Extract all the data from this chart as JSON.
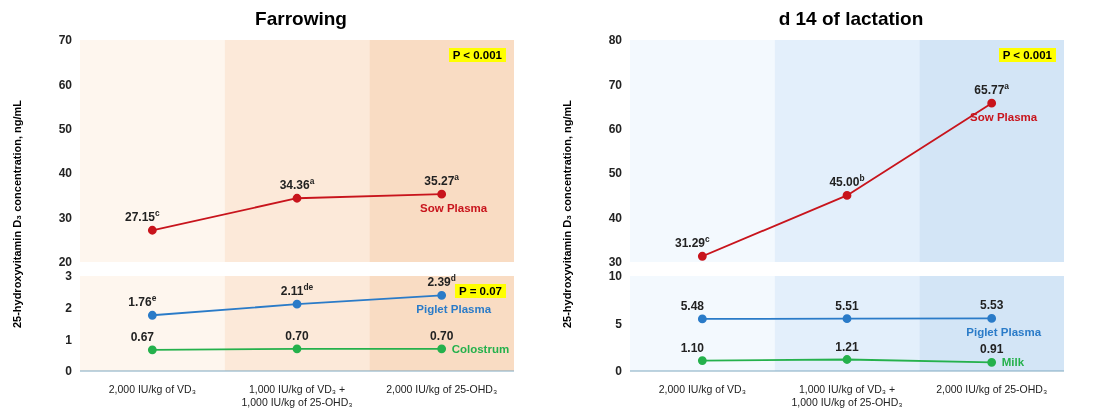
{
  "chart_data": [
    {
      "type": "line",
      "title": "Farrowing",
      "ylabel": "25-hydroxyvitamin D₃ concentration, ng/mL",
      "categories": [
        "2,000 IU/kg of VD₃",
        "1,000 IU/kg of VD₃ +\n1,000 IU/kg of 25-OHD₃",
        "2,000 IU/kg of 25-OHD₃"
      ],
      "ylim": [
        20,
        70
      ],
      "yticks": [
        20,
        30,
        40,
        50,
        60,
        70
      ],
      "tick_labels": "y",
      "marker": "circle",
      "grid": false,
      "annotations": [
        "P < 0.001"
      ],
      "bands": [
        {
          "axis": "x",
          "from": "2,000 IU/kg of VD₃",
          "to": "2,000 IU/kg of VD₃",
          "color": "#fef6ee"
        },
        {
          "axis": "x",
          "from": "1,000 IU/kg of VD₃ +\n1,000 IU/kg of 25-OHD₃",
          "to": "1,000 IU/kg of VD₃ +\n1,000 IU/kg of 25-OHD₃",
          "color": "#fce9d9"
        },
        {
          "axis": "x",
          "from": "2,000 IU/kg of 25-OHD₃",
          "to": "2,000 IU/kg of 25-OHD₃",
          "color": "#f9dcc3"
        }
      ],
      "series": [
        {
          "name": "Sow Plasma",
          "color": "#c8141c",
          "values": [
            27.15,
            34.36,
            35.27
          ],
          "value_labels": [
            "27.15$^{c}$",
            "34.36$^{a}$",
            "35.27$^{a}$"
          ]
        }
      ]
    },
    {
      "type": "line",
      "categories": [
        "2,000 IU/kg of VD₃",
        "1,000 IU/kg of VD₃ +\n1,000 IU/kg of 25-OHD₃",
        "2,000 IU/kg of 25-OHD₃"
      ],
      "ylim": [
        0,
        3
      ],
      "yticks": [
        0,
        1,
        2,
        3
      ],
      "marker": "circle",
      "grid": false,
      "annotations": [
        "P = 0.07"
      ],
      "bands": [
        {
          "axis": "x",
          "from": "2,000 IU/kg of VD₃",
          "to": "2,000 IU/kg of VD₃",
          "color": "#fef6ee"
        },
        {
          "axis": "x",
          "from": "1,000 IU/kg of VD₃ +\n1,000 IU/kg of 25-OHD₃",
          "to": "1,000 IU/kg of VD₃ +\n1,000 IU/kg of 25-OHD₃",
          "color": "#fce9d9"
        },
        {
          "axis": "x",
          "from": "2,000 IU/kg of 25-OHD₃",
          "to": "2,000 IU/kg of 25-OHD₃",
          "color": "#f9dcc3"
        }
      ],
      "series": [
        {
          "name": "Piglet Plasma",
          "color": "#2a7bc8",
          "values": [
            1.76,
            2.11,
            2.39
          ],
          "value_labels": [
            "1.76$^{e}$",
            "2.11$^{de}$",
            "2.39$^{d}$"
          ]
        },
        {
          "name": "Colostrum",
          "color": "#25b14c",
          "values": [
            0.67,
            0.7,
            0.7
          ],
          "value_labels": [
            "0.67",
            "0.70",
            "0.70"
          ]
        }
      ]
    },
    {
      "type": "line",
      "title": "d 14 of lactation",
      "ylabel": "25-hydroxyvitamin D₃ concentration, ng/mL",
      "categories": [
        "2,000 IU/kg of VD₃",
        "1,000 IU/kg of VD₃ +\n1,000 IU/kg of 25-OHD₃",
        "2,000 IU/kg of 25-OHD₃"
      ],
      "ylim": [
        30,
        80
      ],
      "yticks": [
        30,
        40,
        50,
        60,
        70,
        80
      ],
      "tick_labels": "y",
      "marker": "circle",
      "grid": false,
      "annotations": [
        "P < 0.001"
      ],
      "bands": [
        {
          "axis": "x",
          "from": "2,000 IU/kg of VD₃",
          "to": "2,000 IU/kg of VD₃",
          "color": "#f3f9fe"
        },
        {
          "axis": "x",
          "from": "1,000 IU/kg of VD₃ +\n1,000 IU/kg of 25-OHD₃",
          "to": "1,000 IU/kg of VD₃ +\n1,000 IU/kg of 25-OHD₃",
          "color": "#e3effb"
        },
        {
          "axis": "x",
          "from": "2,000 IU/kg of 25-OHD₃",
          "to": "2,000 IU/kg of 25-OHD₃",
          "color": "#d3e5f6"
        }
      ],
      "series": [
        {
          "name": "Sow Plasma",
          "color": "#c8141c",
          "values": [
            31.29,
            45.0,
            65.77
          ],
          "value_labels": [
            "31.29$^{c}$",
            "45.00$^{b}$",
            "65.77$^{a}$"
          ]
        }
      ]
    },
    {
      "type": "line",
      "categories": [
        "2,000 IU/kg of VD₃",
        "1,000 IU/kg of VD₃ +\n1,000 IU/kg of 25-OHD₃",
        "2,000 IU/kg of 25-OHD₃"
      ],
      "ylim": [
        0,
        10
      ],
      "yticks": [
        0,
        5,
        10
      ],
      "marker": "circle",
      "grid": false,
      "bands": [
        {
          "axis": "x",
          "from": "2,000 IU/kg of VD₃",
          "to": "2,000 IU/kg of VD₃",
          "color": "#f3f9fe"
        },
        {
          "axis": "x",
          "from": "1,000 IU/kg of VD₃ +\n1,000 IU/kg of 25-OHD₃",
          "to": "1,000 IU/kg of VD₃ +\n1,000 IU/kg of 25-OHD₃",
          "color": "#e3effb"
        },
        {
          "axis": "x",
          "from": "2,000 IU/kg of 25-OHD₃",
          "to": "2,000 IU/kg of 25-OHD₃",
          "color": "#d3e5f6"
        }
      ],
      "series": [
        {
          "name": "Piglet Plasma",
          "color": "#2a7bc8",
          "values": [
            5.48,
            5.51,
            5.53
          ],
          "value_labels": [
            "5.48",
            "5.51",
            "5.53"
          ]
        },
        {
          "name": "Milk",
          "color": "#25b14c",
          "values": [
            1.1,
            1.21,
            0.91
          ],
          "value_labels": [
            "1.10",
            "1.21",
            "0.91"
          ]
        }
      ]
    }
  ]
}
